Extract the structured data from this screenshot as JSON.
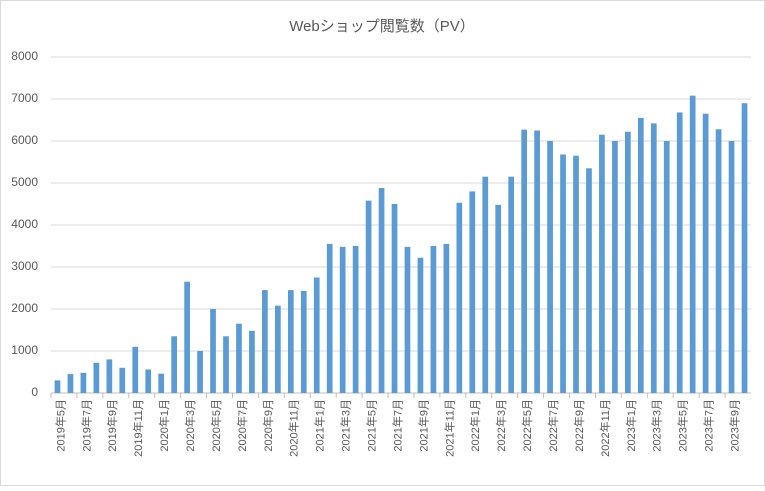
{
  "chart_data": {
    "type": "bar",
    "title": "Webショップ閲覧数（PV）",
    "categories": [
      "2019年5月",
      null,
      "2019年7月",
      null,
      "2019年9月",
      null,
      "2019年11月",
      null,
      "2020年1月",
      null,
      "2020年3月",
      null,
      "2020年5月",
      null,
      "2020年7月",
      null,
      "2020年9月",
      null,
      "2020年11月",
      null,
      "2021年1月",
      null,
      "2021年3月",
      null,
      "2021年5月",
      null,
      "2021年7月",
      null,
      "2021年9月",
      null,
      "2021年11月",
      null,
      "2022年1月",
      null,
      "2022年3月",
      null,
      "2022年5月",
      null,
      "2022年7月",
      null,
      "2022年9月",
      null,
      "2022年11月",
      null,
      "2023年1月",
      null,
      "2023年3月",
      null,
      "2023年5月",
      null,
      "2023年7月",
      null,
      "2023年9月",
      null
    ],
    "values": [
      300,
      450,
      480,
      720,
      800,
      600,
      1100,
      560,
      460,
      1350,
      2650,
      1000,
      2000,
      1350,
      1650,
      1480,
      2450,
      2080,
      2450,
      2430,
      2750,
      3550,
      3480,
      3500,
      4580,
      4880,
      4500,
      3480,
      3220,
      3500,
      3550,
      4530,
      4800,
      5150,
      4480,
      5150,
      6270,
      6250,
      6000,
      5680,
      5650,
      5350,
      6150,
      6000,
      6220,
      6550,
      6420,
      6000,
      6680,
      7080,
      6650,
      6280,
      6000,
      6900
    ],
    "color": "#5b9bd5",
    "ylim": [
      0,
      8000
    ],
    "yticks": [
      0,
      1000,
      2000,
      3000,
      4000,
      5000,
      6000,
      7000,
      8000
    ],
    "grid": true
  }
}
